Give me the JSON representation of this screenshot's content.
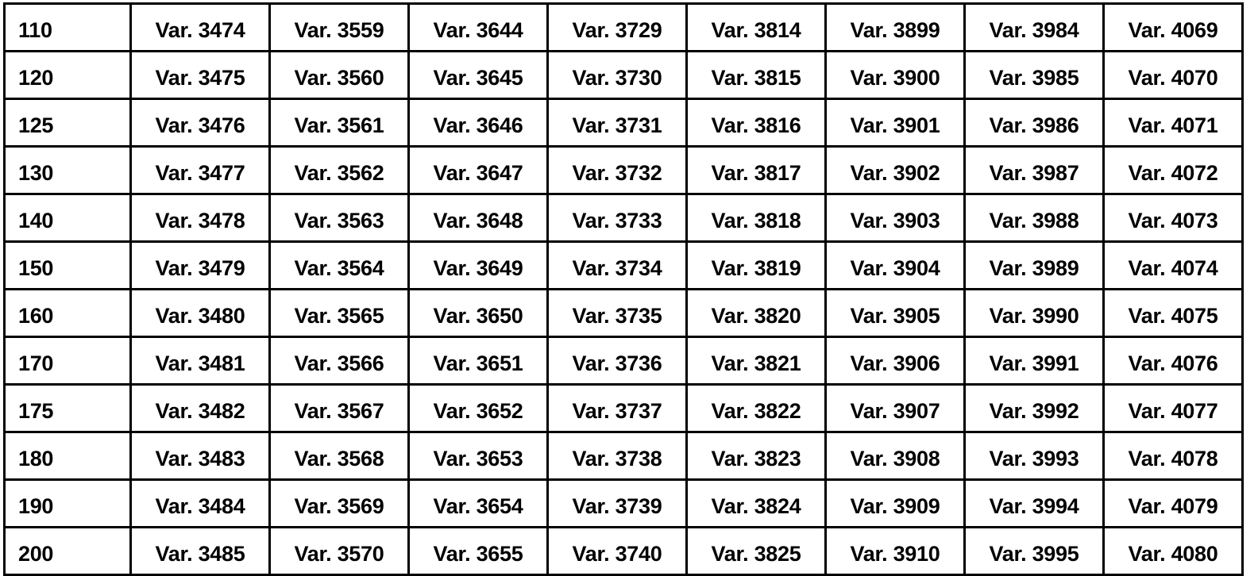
{
  "table": {
    "rows": [
      [
        "110",
        "Var. 3474",
        "Var. 3559",
        "Var. 3644",
        "Var. 3729",
        "Var. 3814",
        "Var. 3899",
        "Var. 3984",
        "Var. 4069"
      ],
      [
        "120",
        "Var. 3475",
        "Var. 3560",
        "Var. 3645",
        "Var. 3730",
        "Var. 3815",
        "Var. 3900",
        "Var. 3985",
        "Var. 4070"
      ],
      [
        "125",
        "Var. 3476",
        "Var. 3561",
        "Var. 3646",
        "Var. 3731",
        "Var. 3816",
        "Var. 3901",
        "Var. 3986",
        "Var. 4071"
      ],
      [
        "130",
        "Var. 3477",
        "Var. 3562",
        "Var. 3647",
        "Var. 3732",
        "Var. 3817",
        "Var. 3902",
        "Var. 3987",
        "Var. 4072"
      ],
      [
        "140",
        "Var. 3478",
        "Var. 3563",
        "Var. 3648",
        "Var. 3733",
        "Var. 3818",
        "Var. 3903",
        "Var. 3988",
        "Var. 4073"
      ],
      [
        "150",
        "Var. 3479",
        "Var. 3564",
        "Var. 3649",
        "Var. 3734",
        "Var. 3819",
        "Var. 3904",
        "Var. 3989",
        "Var. 4074"
      ],
      [
        "160",
        "Var. 3480",
        "Var. 3565",
        "Var. 3650",
        "Var. 3735",
        "Var. 3820",
        "Var. 3905",
        "Var. 3990",
        "Var. 4075"
      ],
      [
        "170",
        "Var. 3481",
        "Var. 3566",
        "Var. 3651",
        "Var. 3736",
        "Var. 3821",
        "Var. 3906",
        "Var. 3991",
        "Var. 4076"
      ],
      [
        "175",
        "Var. 3482",
        "Var. 3567",
        "Var. 3652",
        "Var. 3737",
        "Var. 3822",
        "Var. 3907",
        "Var. 3992",
        "Var. 4077"
      ],
      [
        "180",
        "Var. 3483",
        "Var. 3568",
        "Var. 3653",
        "Var. 3738",
        "Var. 3823",
        "Var. 3908",
        "Var. 3993",
        "Var. 4078"
      ],
      [
        "190",
        "Var. 3484",
        "Var. 3569",
        "Var. 3654",
        "Var. 3739",
        "Var. 3824",
        "Var. 3909",
        "Var. 3994",
        "Var. 4079"
      ],
      [
        "200",
        "Var. 3485",
        "Var. 3570",
        "Var. 3655",
        "Var. 3740",
        "Var. 3825",
        "Var. 3910",
        "Var. 3995",
        "Var. 4080"
      ]
    ]
  }
}
